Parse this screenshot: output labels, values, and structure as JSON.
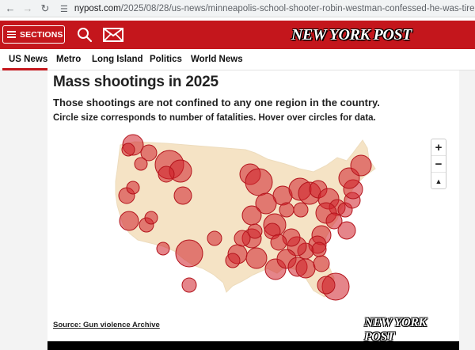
{
  "browser": {
    "back_icon": "back-arrow-icon",
    "forward_icon": "forward-arrow-icon",
    "reload_icon": "reload-icon",
    "site_settings_icon": "tune-icon",
    "url_domain": "nypost.com",
    "url_path": "/2025/08/28/us-news/minneapolis-school-shooter-robin-westman-confessed-he-was-tired-of-being-tr"
  },
  "header": {
    "sections_label": "SECTIONS",
    "brand": "NEW YORK POST",
    "brand_color": "#c4161c",
    "search_icon": "search-icon",
    "mail_icon": "mail-icon"
  },
  "nav": {
    "items": [
      "US News",
      "Metro",
      "Long Island",
      "Politics",
      "World News"
    ],
    "active": "US News"
  },
  "graphic": {
    "title": "Mass shootings in 2025",
    "subtitle": "Those shootings are not confined to any one region in the country.",
    "note": "Circle size corresponds to number of fatalities. Hover over circles for data.",
    "zoom_in": "+",
    "zoom_out": "−",
    "reset_north": "▲",
    "source_label": "Source: Gun violence Archive",
    "footer_logo": "NEW YORK POST",
    "circle_color": "#d0202a",
    "land_color": "#f5e3c5"
  }
}
